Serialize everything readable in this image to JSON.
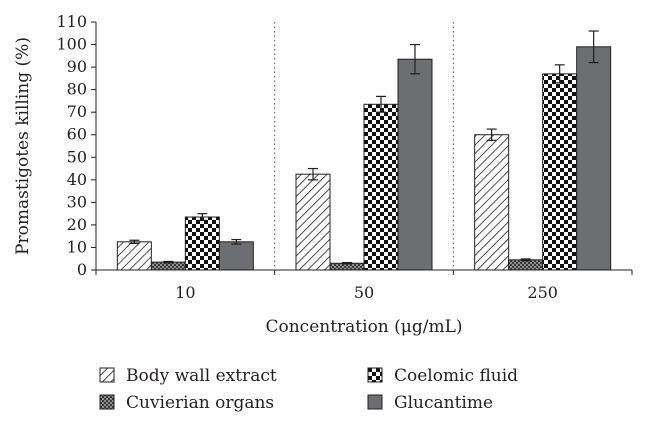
{
  "chart_data": {
    "type": "bar",
    "title": "",
    "xlabel": "Concentration (μg/mL)",
    "ylabel": "Promastigotes killing (%)",
    "ylim": [
      0,
      110
    ],
    "yticks": [
      0,
      10,
      20,
      30,
      40,
      50,
      60,
      70,
      80,
      90,
      100,
      110
    ],
    "categories": [
      "10",
      "50",
      "250"
    ],
    "grid": "vertical dotted separators between groups",
    "legend_position": "bottom",
    "series": [
      {
        "name": "Body wall extract",
        "pattern": "diagonal-hatch",
        "color": "#ffffff",
        "values": [
          12.5,
          42.5,
          60
        ],
        "errors": [
          0.7,
          2.5,
          2.5
        ]
      },
      {
        "name": "Cuvierian organs",
        "pattern": "crosshatch-dark",
        "color": "#4d4d4d",
        "values": [
          3.5,
          3,
          4.5
        ],
        "errors": [
          0.3,
          0.3,
          0.4
        ]
      },
      {
        "name": "Coelomic fluid",
        "pattern": "checkerboard",
        "color": "#000000",
        "values": [
          23.5,
          73.5,
          87
        ],
        "errors": [
          1.5,
          3.5,
          4
        ]
      },
      {
        "name": "Glucantime",
        "pattern": "solid",
        "color": "#6d6e71",
        "values": [
          12.5,
          93.5,
          99
        ],
        "errors": [
          1,
          6.5,
          7
        ]
      }
    ]
  }
}
